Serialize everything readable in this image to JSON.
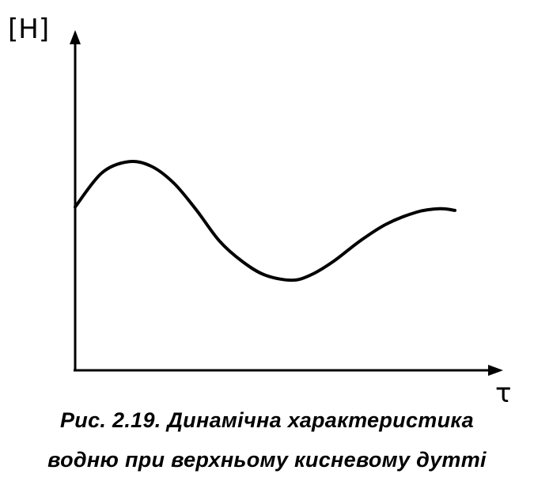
{
  "chart_data": {
    "type": "line",
    "title": "",
    "xlabel": "τ",
    "ylabel": "[H]",
    "grid": false,
    "axes_ticks": "none",
    "xlim": [
      0,
      1
    ],
    "ylim": [
      0,
      1
    ],
    "series": [
      {
        "color": "#000000",
        "x": [
          0.0,
          0.07,
          0.14,
          0.2,
          0.26,
          0.32,
          0.38,
          0.44,
          0.5,
          0.57,
          0.62,
          0.68,
          0.75,
          0.82,
          0.9,
          0.96,
          1.0
        ],
        "y": [
          0.48,
          0.58,
          0.613,
          0.6,
          0.55,
          0.47,
          0.38,
          0.32,
          0.28,
          0.265,
          0.28,
          0.32,
          0.38,
          0.43,
          0.465,
          0.475,
          0.47
        ]
      }
    ]
  },
  "caption": {
    "line1": "Рис. 2.19. Динамічна характеристика",
    "line2": "водню при верхньому кисневому дутті"
  }
}
